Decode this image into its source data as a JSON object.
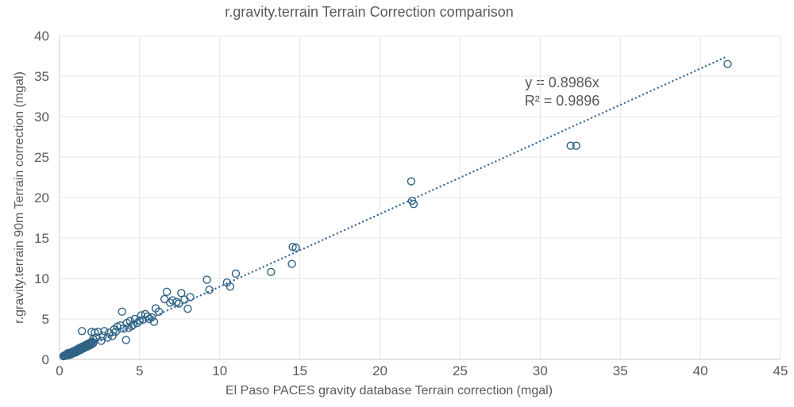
{
  "chart_data": {
    "type": "scatter",
    "title": "r.gravity.terrain Terrain Correction comparison",
    "xlabel": "El Paso PACES gravity database Terrain correction (mgal)",
    "ylabel": "r.gravity.terrain 90m Terrain correction  (mgal)",
    "xlim": [
      0,
      45
    ],
    "ylim": [
      0,
      40
    ],
    "xticks": [
      0,
      5,
      10,
      15,
      20,
      25,
      30,
      35,
      40,
      45
    ],
    "yticks": [
      0,
      5,
      10,
      15,
      20,
      25,
      30,
      35,
      40
    ],
    "grid": true,
    "legend": "none",
    "marker": {
      "shape": "open-circle",
      "color": "#2e6386",
      "radius": 4.5,
      "stroke_width": 1.4
    },
    "trendline": {
      "type": "linear",
      "slope": 0.8986,
      "intercept": 0,
      "x_range": [
        0.3,
        41.6
      ],
      "style": "dotted",
      "color": "#3d6d9e",
      "label": "y = 0.8986x",
      "r2_label": "R² = 0.9896"
    },
    "colors": {
      "grid": "#e4e4e4",
      "axis_line": "#c9c9c9",
      "text": "#595959",
      "background": "#ffffff"
    },
    "points": [
      [
        0.25,
        0.4
      ],
      [
        0.3,
        0.5
      ],
      [
        0.35,
        0.45
      ],
      [
        0.4,
        0.55
      ],
      [
        0.45,
        0.5
      ],
      [
        0.5,
        0.6
      ],
      [
        0.5,
        0.75
      ],
      [
        0.55,
        0.65
      ],
      [
        0.6,
        0.55
      ],
      [
        0.6,
        0.8
      ],
      [
        0.65,
        0.7
      ],
      [
        0.7,
        0.6
      ],
      [
        0.7,
        0.85
      ],
      [
        0.75,
        0.75
      ],
      [
        0.8,
        0.9
      ],
      [
        0.8,
        0.7
      ],
      [
        0.85,
        1.0
      ],
      [
        0.9,
        0.8
      ],
      [
        0.9,
        1.05
      ],
      [
        0.95,
        0.9
      ],
      [
        1.0,
        1.1
      ],
      [
        1.0,
        0.85
      ],
      [
        1.05,
        1.15
      ],
      [
        1.1,
        0.95
      ],
      [
        1.1,
        1.25
      ],
      [
        1.15,
        1.05
      ],
      [
        1.2,
        1.3
      ],
      [
        1.2,
        1.1
      ],
      [
        1.25,
        1.4
      ],
      [
        1.3,
        1.15
      ],
      [
        1.3,
        1.45
      ],
      [
        1.35,
        1.25
      ],
      [
        1.4,
        1.5
      ],
      [
        1.4,
        1.3
      ],
      [
        1.45,
        1.6
      ],
      [
        1.5,
        1.35
      ],
      [
        1.5,
        1.65
      ],
      [
        1.55,
        1.45
      ],
      [
        1.6,
        1.7
      ],
      [
        1.6,
        1.5
      ],
      [
        1.65,
        1.8
      ],
      [
        1.7,
        1.55
      ],
      [
        1.7,
        1.85
      ],
      [
        1.75,
        1.65
      ],
      [
        1.8,
        1.95
      ],
      [
        1.85,
        1.7
      ],
      [
        1.9,
        2.0
      ],
      [
        1.9,
        1.8
      ],
      [
        1.95,
        2.1
      ],
      [
        2.0,
        1.85
      ],
      [
        2.05,
        2.2
      ],
      [
        2.1,
        2.0
      ],
      [
        1.4,
        3.5
      ],
      [
        2.0,
        3.4
      ],
      [
        2.2,
        3.3
      ],
      [
        2.4,
        3.4
      ],
      [
        2.8,
        3.5
      ],
      [
        3.4,
        3.7
      ],
      [
        2.1,
        2.5
      ],
      [
        2.3,
        2.7
      ],
      [
        2.6,
        2.3
      ],
      [
        2.7,
        2.9
      ],
      [
        3.0,
        2.7
      ],
      [
        3.1,
        3.3
      ],
      [
        3.3,
        2.9
      ],
      [
        3.5,
        3.4
      ],
      [
        3.6,
        4.05
      ],
      [
        3.8,
        4.2
      ],
      [
        3.9,
        5.9
      ],
      [
        4.0,
        3.8
      ],
      [
        4.15,
        2.4
      ],
      [
        4.2,
        4.5
      ],
      [
        4.3,
        3.9
      ],
      [
        4.4,
        4.75
      ],
      [
        4.5,
        4.1
      ],
      [
        4.6,
        4.3
      ],
      [
        4.7,
        5.0
      ],
      [
        4.85,
        4.5
      ],
      [
        5.0,
        4.8
      ],
      [
        5.1,
        5.45
      ],
      [
        5.2,
        4.9
      ],
      [
        5.35,
        5.6
      ],
      [
        5.5,
        5.3
      ],
      [
        5.6,
        5.0
      ],
      [
        5.75,
        5.2
      ],
      [
        5.9,
        4.65
      ],
      [
        6.0,
        6.3
      ],
      [
        6.2,
        5.9
      ],
      [
        6.55,
        7.45
      ],
      [
        6.7,
        8.35
      ],
      [
        6.9,
        7.0
      ],
      [
        7.05,
        7.3
      ],
      [
        7.3,
        7.1
      ],
      [
        7.45,
        6.9
      ],
      [
        7.6,
        8.2
      ],
      [
        7.8,
        7.4
      ],
      [
        8.0,
        6.25
      ],
      [
        8.15,
        7.7
      ],
      [
        9.2,
        9.85
      ],
      [
        9.35,
        8.6
      ],
      [
        10.45,
        9.5
      ],
      [
        10.65,
        9.0
      ],
      [
        11.0,
        10.6
      ],
      [
        13.2,
        10.8
      ],
      [
        14.5,
        11.8
      ],
      [
        14.55,
        13.9
      ],
      [
        14.75,
        13.8
      ],
      [
        21.95,
        22.0
      ],
      [
        22.0,
        19.6
      ],
      [
        22.1,
        19.2
      ],
      [
        31.9,
        26.4
      ],
      [
        32.25,
        26.4
      ],
      [
        41.7,
        36.5
      ]
    ]
  }
}
